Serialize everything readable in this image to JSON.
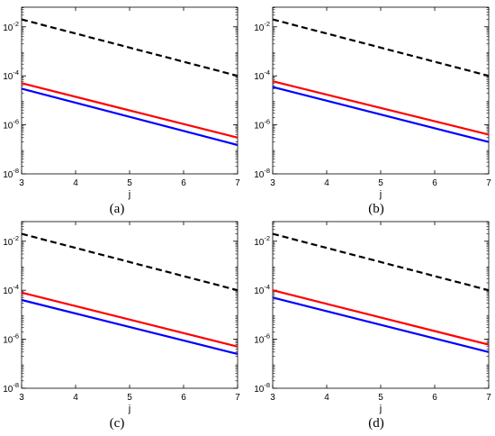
{
  "chart_data": [
    {
      "type": "line",
      "panel_label": "(a)",
      "xlabel": "j",
      "ylabel": "",
      "xlim": [
        3,
        7
      ],
      "ylim_log10": [
        -8,
        -1.2
      ],
      "yscale": "log",
      "x_ticks": [
        "3",
        "4",
        "5",
        "6",
        "7"
      ],
      "y_ticks": [
        {
          "base": "10",
          "exp": "-2"
        },
        {
          "base": "10",
          "exp": "-4"
        },
        {
          "base": "10",
          "exp": "-6"
        },
        {
          "base": "10",
          "exp": "-8"
        }
      ],
      "grid": false,
      "series": [
        {
          "color": "#000000",
          "style": "dashed",
          "x": [
            3,
            7
          ],
          "y": [
            0.02,
            0.0001
          ]
        },
        {
          "color": "#ff0000",
          "style": "solid",
          "x": [
            3,
            7
          ],
          "y": [
            5e-05,
            3e-07
          ]
        },
        {
          "color": "#0000ff",
          "style": "solid",
          "x": [
            3,
            7
          ],
          "y": [
            3e-05,
            1.5e-07
          ]
        }
      ]
    },
    {
      "type": "line",
      "panel_label": "(b)",
      "xlabel": "j",
      "ylabel": "",
      "xlim": [
        3,
        7
      ],
      "ylim_log10": [
        -8,
        -1.2
      ],
      "yscale": "log",
      "x_ticks": [
        "3",
        "4",
        "5",
        "6",
        "7"
      ],
      "y_ticks": [
        {
          "base": "10",
          "exp": "-2"
        },
        {
          "base": "10",
          "exp": "-4"
        },
        {
          "base": "10",
          "exp": "-6"
        },
        {
          "base": "10",
          "exp": "-8"
        }
      ],
      "grid": false,
      "series": [
        {
          "color": "#000000",
          "style": "dashed",
          "x": [
            3,
            7
          ],
          "y": [
            0.02,
            0.0001
          ]
        },
        {
          "color": "#ff0000",
          "style": "solid",
          "x": [
            3,
            7
          ],
          "y": [
            6e-05,
            4e-07
          ]
        },
        {
          "color": "#0000ff",
          "style": "solid",
          "x": [
            3,
            7
          ],
          "y": [
            3.5e-05,
            2e-07
          ]
        }
      ]
    },
    {
      "type": "line",
      "panel_label": "(c)",
      "xlabel": "j",
      "ylabel": "",
      "xlim": [
        3,
        7
      ],
      "ylim_log10": [
        -8,
        -1.2
      ],
      "yscale": "log",
      "x_ticks": [
        "3",
        "4",
        "5",
        "6",
        "7"
      ],
      "y_ticks": [
        {
          "base": "10",
          "exp": "-2"
        },
        {
          "base": "10",
          "exp": "-4"
        },
        {
          "base": "10",
          "exp": "-6"
        },
        {
          "base": "10",
          "exp": "-8"
        }
      ],
      "grid": false,
      "series": [
        {
          "color": "#000000",
          "style": "dashed",
          "x": [
            3,
            7
          ],
          "y": [
            0.02,
            0.0001
          ]
        },
        {
          "color": "#ff0000",
          "style": "solid",
          "x": [
            3,
            7
          ],
          "y": [
            8e-05,
            5e-07
          ]
        },
        {
          "color": "#0000ff",
          "style": "solid",
          "x": [
            3,
            7
          ],
          "y": [
            4e-05,
            2.5e-07
          ]
        }
      ]
    },
    {
      "type": "line",
      "panel_label": "(d)",
      "xlabel": "j",
      "ylabel": "",
      "xlim": [
        3,
        7
      ],
      "ylim_log10": [
        -8,
        -1.2
      ],
      "yscale": "log",
      "x_ticks": [
        "3",
        "4",
        "5",
        "6",
        "7"
      ],
      "y_ticks": [
        {
          "base": "10",
          "exp": "-2"
        },
        {
          "base": "10",
          "exp": "-4"
        },
        {
          "base": "10",
          "exp": "-6"
        },
        {
          "base": "10",
          "exp": "-8"
        }
      ],
      "grid": false,
      "series": [
        {
          "color": "#000000",
          "style": "dashed",
          "x": [
            3,
            7
          ],
          "y": [
            0.02,
            0.0001
          ]
        },
        {
          "color": "#ff0000",
          "style": "solid",
          "x": [
            3,
            7
          ],
          "y": [
            0.0001,
            6e-07
          ]
        },
        {
          "color": "#0000ff",
          "style": "solid",
          "x": [
            3,
            7
          ],
          "y": [
            5e-05,
            3e-07
          ]
        }
      ]
    }
  ]
}
